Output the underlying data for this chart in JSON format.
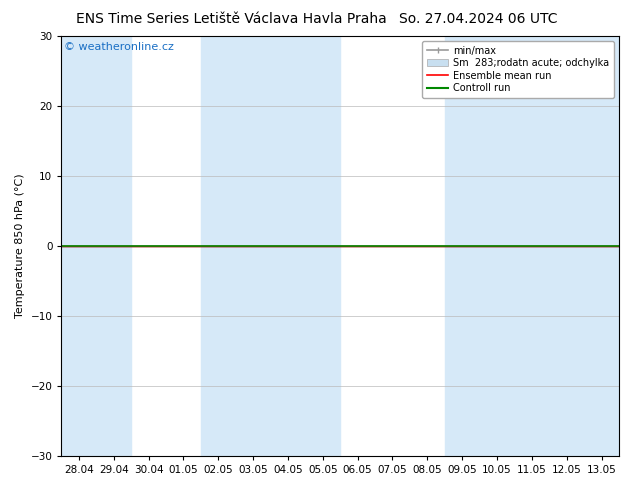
{
  "title_left": "ENS Time Series Letiště Václava Havla Praha",
  "title_right": "So. 27.04.2024 06 UTC",
  "ylabel": "Temperature 850 hPa (°C)",
  "watermark": "© weatheronline.cz",
  "ylim": [
    -30,
    30
  ],
  "yticks": [
    -30,
    -20,
    -10,
    0,
    10,
    20,
    30
  ],
  "x_labels": [
    "28.04",
    "29.04",
    "30.04",
    "01.05",
    "02.05",
    "03.05",
    "04.05",
    "05.05",
    "06.05",
    "07.05",
    "08.05",
    "09.05",
    "10.05",
    "11.05",
    "12.05",
    "13.05"
  ],
  "bg_color": "#ffffff",
  "plot_bg_color": "#ffffff",
  "band_color": "#d6e9f8",
  "blue_band_indices": [
    0,
    1,
    4,
    5,
    6,
    7,
    11,
    12,
    13,
    14,
    15
  ],
  "zero_line_y": 0.0,
  "ensemble_mean_color": "#ff0000",
  "control_run_color": "#008800",
  "title_fontsize": 10,
  "label_fontsize": 8,
  "tick_fontsize": 7.5,
  "watermark_color": "#1a6fc4",
  "legend_fontsize": 7,
  "minmax_color": "#999999",
  "sm_color": "#c8dff0"
}
